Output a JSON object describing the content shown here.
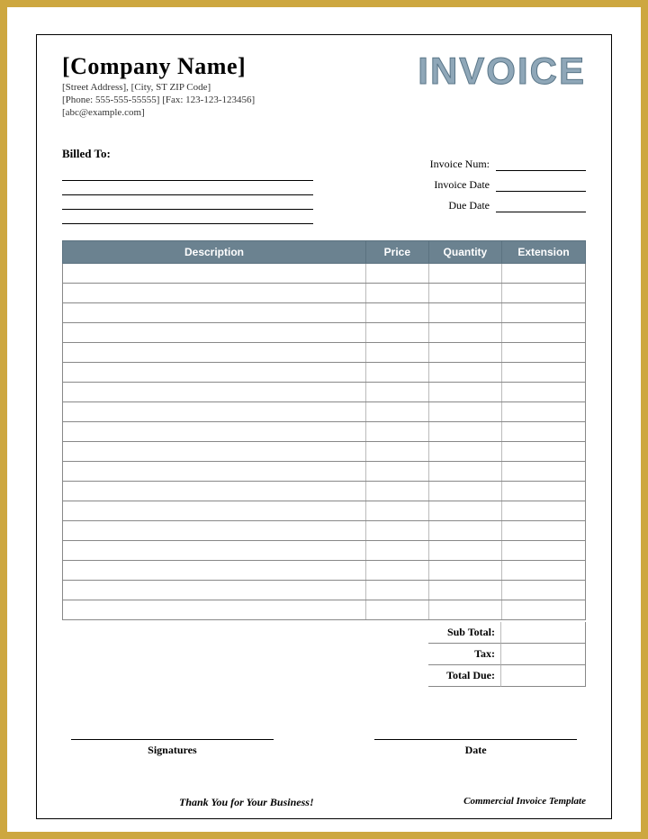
{
  "header": {
    "company_name": "[Company Name]",
    "address_line": "[Street Address], [City, ST ZIP Code]",
    "phone_line": "[Phone: 555-555-55555] [Fax: 123-123-123456]",
    "email_line": "[abc@example.com]",
    "invoice_title": "INVOICE"
  },
  "billed": {
    "label": "Billed To:"
  },
  "meta": {
    "num_label": "Invoice Num:",
    "date_label": "Invoice Date",
    "due_label": "Due Date"
  },
  "table": {
    "columns": [
      "Description",
      "Price",
      "Quantity",
      "Extension"
    ],
    "row_count": 18,
    "header_bg": "#6b8290",
    "header_fg": "#ffffff",
    "row_border": "#888888"
  },
  "totals": {
    "subtotal_label": "Sub Total:",
    "tax_label": "Tax:",
    "total_due_label": "Total Due:"
  },
  "signatures": {
    "left_label": "Signatures",
    "right_label": "Date"
  },
  "footer": {
    "thank_you": "Thank You for Your Business!",
    "template": "Commercial Invoice Template"
  }
}
